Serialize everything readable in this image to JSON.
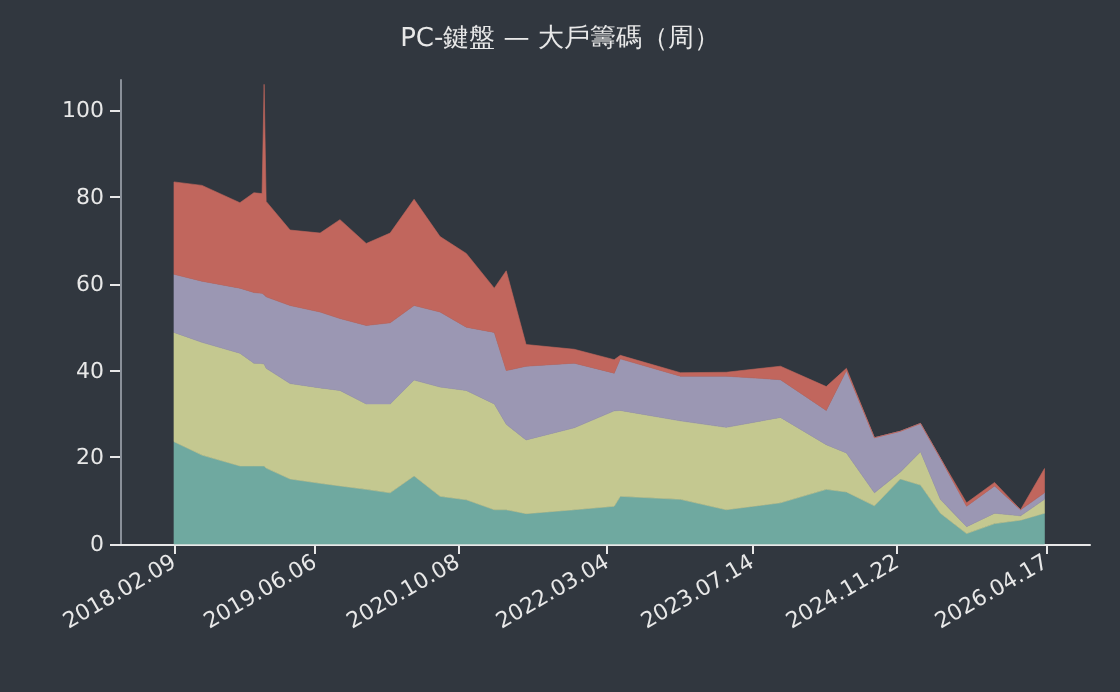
{
  "chart_data": {
    "type": "area",
    "title": "PC-鍵盤 — 大戶籌碼（周）",
    "stacked": true,
    "x": [
      "2018-02-09",
      "2018-05-16",
      "2018-09-23",
      "2018-11-10",
      "2018-12-08",
      "2018-12-15",
      "2018-12-22",
      "2019-03-14",
      "2019-06-25",
      "2019-09-01",
      "2019-11-30",
      "2020-02-20",
      "2020-05-12",
      "2020-08-09",
      "2020-11-07",
      "2021-02-11",
      "2021-03-24",
      "2021-05-31",
      "2021-11-12",
      "2022-03-29",
      "2022-04-19",
      "2022-11-11",
      "2023-04-17",
      "2023-10-20",
      "2024-03-25",
      "2024-06-02",
      "2024-09-06",
      "2024-12-04",
      "2025-02-11",
      "2025-04-20",
      "2025-07-19",
      "2025-10-23",
      "2026-01-20",
      "2026-04-12"
    ],
    "series": [
      {
        "color": "#6fa9a0",
        "values": [
          23.6,
          20.5,
          18,
          18,
          18,
          18,
          17.5,
          15,
          14,
          13.4,
          12.6,
          11.8,
          15.7,
          11,
          10.2,
          7.9,
          7.9,
          7,
          7.9,
          8.7,
          11,
          10.3,
          7.9,
          9.5,
          12.6,
          12,
          8.8,
          15,
          13.6,
          7.1,
          2.4,
          4.7,
          5.5,
          7.1
        ]
      },
      {
        "color": "#c4c890",
        "values": [
          25.2,
          26,
          26,
          23.7,
          23.6,
          23.5,
          23,
          22,
          22,
          22,
          19.7,
          20.5,
          22.1,
          25.2,
          25.2,
          24.4,
          19.7,
          17,
          18.9,
          22,
          19.8,
          18.1,
          19,
          19.7,
          10.3,
          9,
          3,
          1.6,
          7.7,
          3.2,
          1.6,
          2.4,
          1,
          3.2
        ]
      },
      {
        "color": "#9b97b3",
        "values": [
          13.4,
          14.1,
          15,
          16.3,
          16.2,
          16,
          16.5,
          18,
          17.5,
          16.6,
          18.1,
          18.7,
          17.2,
          17.3,
          14.6,
          16.5,
          12.4,
          17,
          14.9,
          8.7,
          11.9,
          10.3,
          11.8,
          8.7,
          7.9,
          19,
          12.7,
          9.4,
          6.5,
          9.5,
          4.7,
          6.3,
          1.4,
          1.5
        ]
      },
      {
        "color": "#c1665d",
        "values": [
          21.3,
          22.1,
          19.7,
          23,
          23,
          48.5,
          22,
          17.4,
          18.2,
          22.8,
          18.9,
          20.7,
          24.5,
          17.4,
          17,
          10.2,
          23,
          5,
          3.2,
          3.1,
          0.8,
          0.8,
          0.9,
          3.1,
          5.5,
          0.5,
          0,
          0,
          0,
          0,
          0.8,
          0.8,
          0,
          5.6
        ]
      }
    ],
    "xlim": [
      "2017-08-08",
      "2026-09-15"
    ],
    "xticks": [
      {
        "value": "2018-02-09",
        "label": "2018.02.09"
      },
      {
        "value": "2019-06-06",
        "label": "2019.06.06"
      },
      {
        "value": "2020-10-08",
        "label": "2020.10.08"
      },
      {
        "value": "2022-03-04",
        "label": "2022.03.04"
      },
      {
        "value": "2023-07-14",
        "label": "2023.07.14"
      },
      {
        "value": "2024-11-22",
        "label": "2024.11.22"
      },
      {
        "value": "2026-04-17",
        "label": "2026.04.17"
      }
    ],
    "ylim": [
      0,
      107
    ],
    "yticks": [
      0,
      20,
      40,
      60,
      80,
      100
    ],
    "grid": false
  }
}
